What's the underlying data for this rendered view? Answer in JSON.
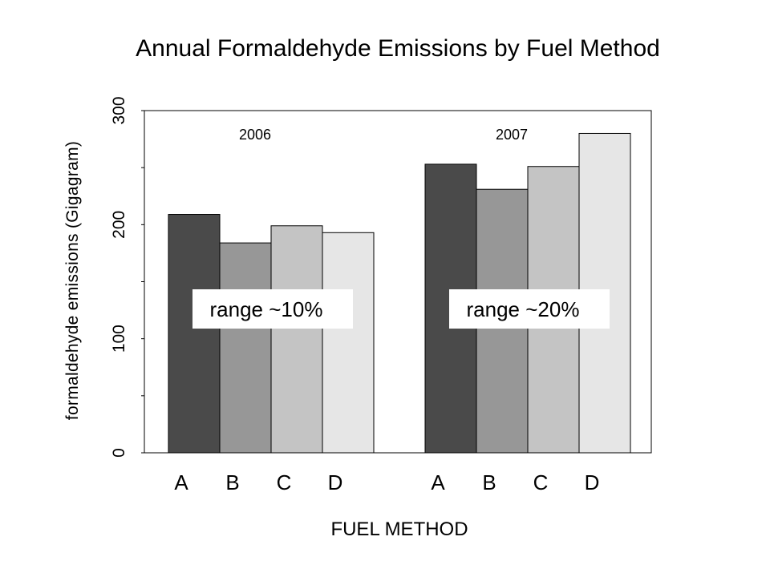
{
  "chart_data": {
    "type": "bar",
    "title": "Annual Formaldehyde Emissions by Fuel Method",
    "xlabel": "FUEL METHOD",
    "ylabel": "formaldehyde emissions (Gigagram)",
    "ylim": [
      0,
      300
    ],
    "yticks": [
      0,
      100,
      200,
      300
    ],
    "categories": [
      "A",
      "B",
      "C",
      "D"
    ],
    "groups": [
      {
        "label": "2006",
        "values": [
          209,
          184,
          199,
          193
        ],
        "annotation": "range ~10%"
      },
      {
        "label": "2007",
        "values": [
          253,
          231,
          251,
          280
        ],
        "annotation": "range ~20%"
      }
    ],
    "colors": [
      "#4a4a4a",
      "#979797",
      "#c4c4c4",
      "#e6e6e6"
    ],
    "grid": false,
    "legend": "none"
  }
}
